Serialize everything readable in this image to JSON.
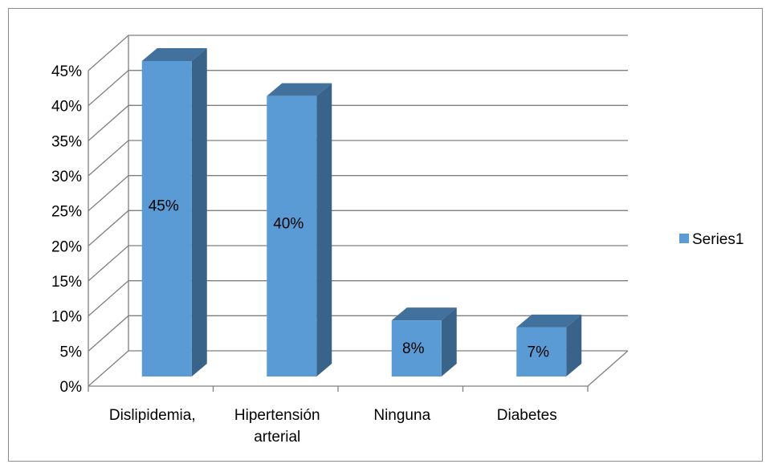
{
  "chart_data": {
    "type": "bar",
    "style": "3d-clustered-column",
    "categories": [
      "Dislipidemia,",
      "Hipertensión arterial",
      "Ninguna",
      "Diabetes"
    ],
    "category_lines": [
      [
        "Dislipidemia,"
      ],
      [
        "Hipertensión",
        "arterial"
      ],
      [
        "Ninguna"
      ],
      [
        "Diabetes"
      ]
    ],
    "series": [
      {
        "name": "Series1",
        "values": [
          0.45,
          0.4,
          0.08,
          0.07
        ],
        "labels": [
          "45%",
          "40%",
          "8%",
          "7%"
        ]
      }
    ],
    "ylim": [
      0,
      0.45
    ],
    "yticks": [
      "0%",
      "5%",
      "10%",
      "15%",
      "20%",
      "25%",
      "30%",
      "35%",
      "40%",
      "45%"
    ],
    "grid": true,
    "legend": "right",
    "colors": {
      "front": "#5b9bd5",
      "side": "#3a6389",
      "top": "#41719c",
      "grid": "#7f7f7f"
    }
  }
}
